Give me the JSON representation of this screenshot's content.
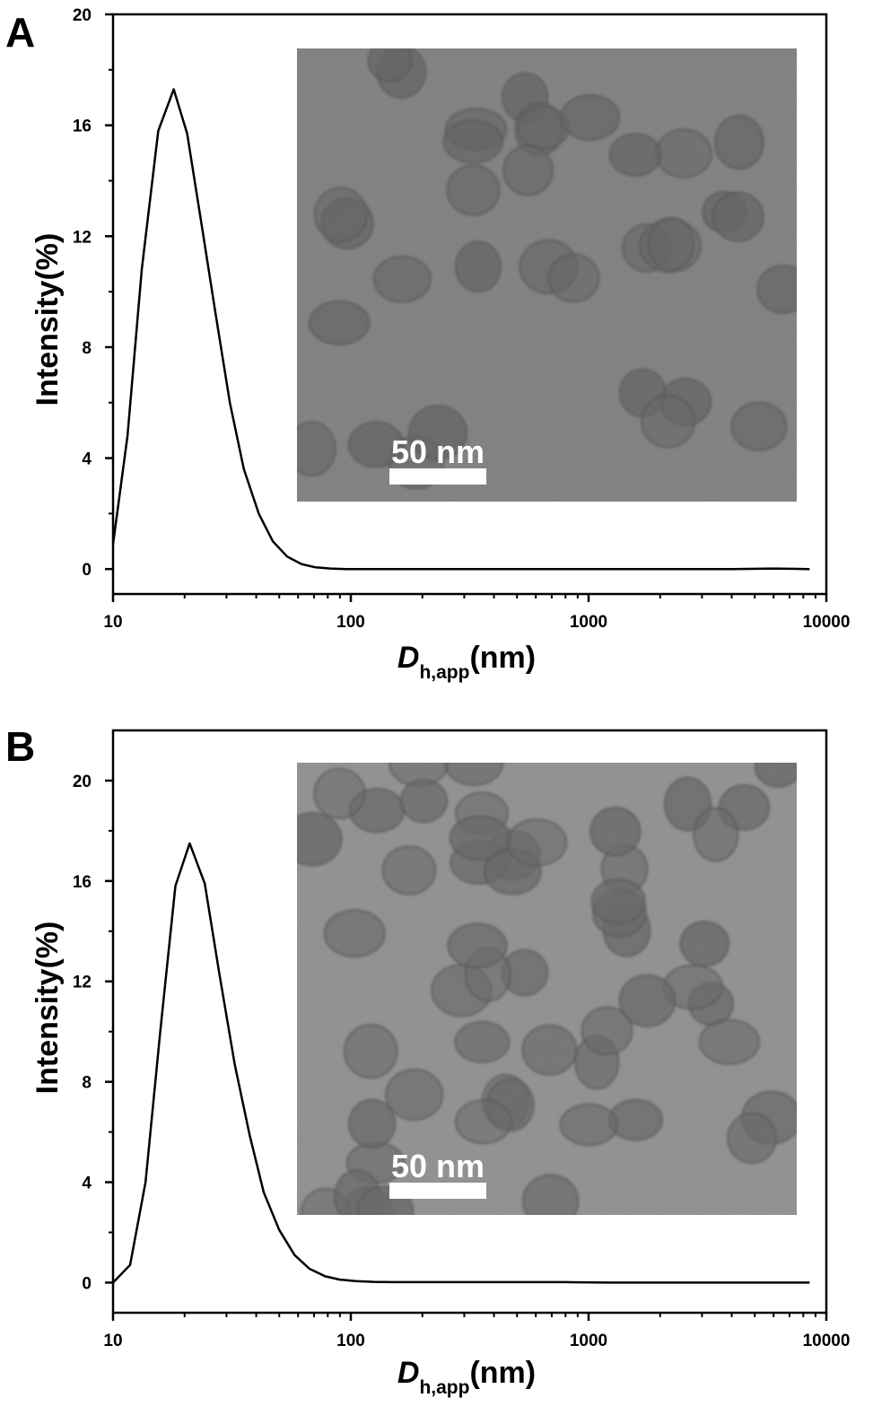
{
  "chart_data": [
    {
      "type": "line",
      "panel_label": "A",
      "xlabel_main": "D",
      "xlabel_sub": "h,app",
      "xlabel_unit": "(nm)",
      "ylabel": "Intensity(%)",
      "x_scale": "log",
      "xlim": [
        10,
        10000
      ],
      "ylim": [
        -0.9,
        20
      ],
      "x_ticks": [
        10,
        100,
        1000,
        10000
      ],
      "x_tick_labels": [
        "10",
        "100",
        "1000",
        "10000"
      ],
      "y_ticks": [
        0,
        4,
        8,
        12,
        16,
        20
      ],
      "y_tick_labels": [
        "0",
        "4",
        "8",
        "12",
        "16",
        "20"
      ],
      "grid": false,
      "series": [
        {
          "x": [
            10,
            11.5,
            13.2,
            15.5,
            18,
            20.5,
            23.5,
            27,
            31,
            35.5,
            41,
            47,
            54,
            62,
            71,
            82,
            95,
            110,
            130,
            160,
            220,
            350,
            600,
            1000,
            2000,
            4000,
            6000,
            8500
          ],
          "y": [
            0.9,
            4.8,
            10.8,
            15.8,
            17.3,
            15.7,
            12.5,
            9.2,
            6.0,
            3.6,
            2.0,
            1.0,
            0.45,
            0.18,
            0.06,
            0.02,
            0.0,
            0.0,
            0.0,
            0.0,
            0.0,
            0.0,
            0.0,
            0.0,
            0.0,
            0.0,
            0.02,
            0.0
          ]
        }
      ],
      "inset": {
        "type": "tem-micrograph",
        "scale_bar_label": "50 nm",
        "background_color": "#8a8a8a",
        "particle_color": "#555555"
      }
    },
    {
      "type": "line",
      "panel_label": "B",
      "xlabel_main": "D",
      "xlabel_sub": "h,app",
      "xlabel_unit": "(nm)",
      "ylabel": "Intensity(%)",
      "x_scale": "log",
      "xlim": [
        10,
        10000
      ],
      "ylim": [
        -1.2,
        22
      ],
      "x_ticks": [
        10,
        100,
        1000,
        10000
      ],
      "x_tick_labels": [
        "10",
        "100",
        "1000",
        "10000"
      ],
      "y_ticks": [
        0,
        4,
        8,
        12,
        16,
        20
      ],
      "y_tick_labels": [
        "0",
        "4",
        "8",
        "12",
        "16",
        "20"
      ],
      "grid": false,
      "series": [
        {
          "x": [
            10,
            11.8,
            13.7,
            15.8,
            18.3,
            21,
            24.3,
            28,
            32.5,
            37.5,
            43,
            50,
            58,
            67,
            78,
            90,
            105,
            125,
            150,
            200,
            300,
            500,
            800,
            1200,
            2000,
            4000,
            8500
          ],
          "y": [
            0.0,
            0.7,
            4.0,
            10.0,
            15.8,
            17.5,
            15.9,
            12.3,
            8.7,
            5.9,
            3.6,
            2.1,
            1.1,
            0.55,
            0.25,
            0.12,
            0.06,
            0.03,
            0.02,
            0.02,
            0.02,
            0.02,
            0.02,
            0.0,
            0.0,
            0.0,
            0.0
          ]
        }
      ],
      "inset": {
        "type": "tem-micrograph",
        "scale_bar_label": "50 nm",
        "background_color": "#a6a6a6",
        "particle_color": "#5c5c5c"
      }
    }
  ]
}
